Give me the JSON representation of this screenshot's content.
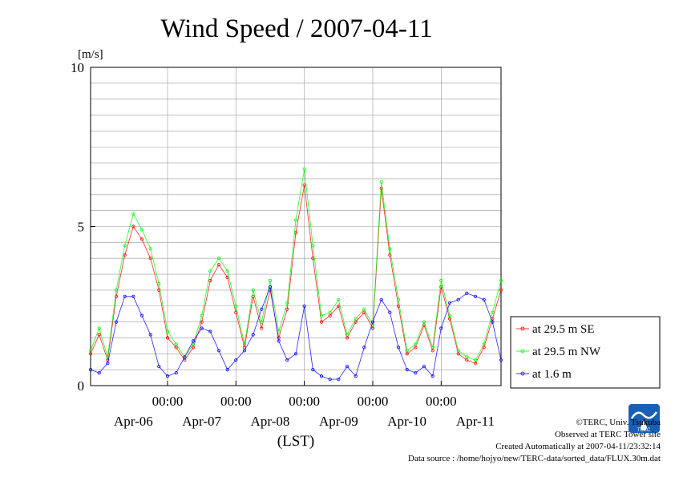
{
  "chart_data": {
    "type": "line",
    "title": "Wind Speed / 2007-04-11",
    "ylabel": "[m/s]",
    "xlabel": "(LST)",
    "ylim": [
      0,
      10
    ],
    "yticks": [
      "0",
      "5",
      "10"
    ],
    "xlim": [
      "2007-04-05T21:00",
      "2007-04-11T21:00"
    ],
    "time_tick_labels": [
      "00:00",
      "00:00",
      "00:00",
      "00:00",
      "00:00"
    ],
    "time_ticks": [
      "2007-04-07T00:00",
      "2007-04-08T00:00",
      "2007-04-09T00:00",
      "2007-04-10T00:00",
      "2007-04-11T00:00"
    ],
    "date_labels": [
      "Apr-06",
      "Apr-07",
      "Apr-08",
      "Apr-09",
      "Apr-10",
      "Apr-11"
    ],
    "date_label_positions": [
      "2007-04-06T12:00",
      "2007-04-07T12:00",
      "2007-04-08T12:00",
      "2007-04-09T12:00",
      "2007-04-10T12:00",
      "2007-04-11T12:00"
    ],
    "grid": true,
    "legend_position": "bottom-right, outside plot",
    "series": [
      {
        "name": "at 29.5 m SE",
        "color": "#ff0000",
        "x": [
          "2007-04-05T21:00",
          "2007-04-06T00:00",
          "2007-04-06T03:00",
          "2007-04-06T06:00",
          "2007-04-06T09:00",
          "2007-04-06T12:00",
          "2007-04-06T15:00",
          "2007-04-06T18:00",
          "2007-04-06T21:00",
          "2007-04-07T00:00",
          "2007-04-07T03:00",
          "2007-04-07T06:00",
          "2007-04-07T09:00",
          "2007-04-07T12:00",
          "2007-04-07T15:00",
          "2007-04-07T18:00",
          "2007-04-07T21:00",
          "2007-04-08T00:00",
          "2007-04-08T03:00",
          "2007-04-08T06:00",
          "2007-04-08T09:00",
          "2007-04-08T12:00",
          "2007-04-08T15:00",
          "2007-04-08T18:00",
          "2007-04-08T21:00",
          "2007-04-09T00:00",
          "2007-04-09T03:00",
          "2007-04-09T06:00",
          "2007-04-09T09:00",
          "2007-04-09T12:00",
          "2007-04-09T15:00",
          "2007-04-09T18:00",
          "2007-04-09T21:00",
          "2007-04-10T00:00",
          "2007-04-10T03:00",
          "2007-04-10T06:00",
          "2007-04-10T09:00",
          "2007-04-10T12:00",
          "2007-04-10T15:00",
          "2007-04-10T18:00",
          "2007-04-10T21:00",
          "2007-04-11T00:00",
          "2007-04-11T03:00",
          "2007-04-11T06:00",
          "2007-04-11T09:00",
          "2007-04-11T12:00",
          "2007-04-11T15:00",
          "2007-04-11T18:00",
          "2007-04-11T21:00"
        ],
        "y": [
          1.0,
          1.6,
          0.8,
          2.8,
          4.1,
          5.0,
          4.6,
          4.0,
          3.0,
          1.5,
          1.2,
          0.8,
          1.2,
          2.0,
          3.3,
          3.8,
          3.4,
          2.3,
          1.2,
          2.8,
          1.8,
          3.0,
          1.5,
          2.4,
          4.8,
          6.3,
          4.0,
          2.0,
          2.2,
          2.5,
          1.5,
          2.0,
          2.3,
          1.8,
          6.2,
          4.1,
          2.5,
          1.0,
          1.2,
          1.9,
          1.1,
          3.1,
          2.1,
          1.0,
          0.8,
          0.7,
          1.2,
          2.1,
          3.0
        ]
      },
      {
        "name": "at 29.5 m NW",
        "color": "#00ff00",
        "x": [
          "2007-04-05T21:00",
          "2007-04-06T00:00",
          "2007-04-06T03:00",
          "2007-04-06T06:00",
          "2007-04-06T09:00",
          "2007-04-06T12:00",
          "2007-04-06T15:00",
          "2007-04-06T18:00",
          "2007-04-06T21:00",
          "2007-04-07T00:00",
          "2007-04-07T03:00",
          "2007-04-07T06:00",
          "2007-04-07T09:00",
          "2007-04-07T12:00",
          "2007-04-07T15:00",
          "2007-04-07T18:00",
          "2007-04-07T21:00",
          "2007-04-08T00:00",
          "2007-04-08T03:00",
          "2007-04-08T06:00",
          "2007-04-08T09:00",
          "2007-04-08T12:00",
          "2007-04-08T15:00",
          "2007-04-08T18:00",
          "2007-04-08T21:00",
          "2007-04-09T00:00",
          "2007-04-09T03:00",
          "2007-04-09T06:00",
          "2007-04-09T09:00",
          "2007-04-09T12:00",
          "2007-04-09T15:00",
          "2007-04-09T18:00",
          "2007-04-09T21:00",
          "2007-04-10T00:00",
          "2007-04-10T03:00",
          "2007-04-10T06:00",
          "2007-04-10T09:00",
          "2007-04-10T12:00",
          "2007-04-10T15:00",
          "2007-04-10T18:00",
          "2007-04-10T21:00",
          "2007-04-11T00:00",
          "2007-04-11T03:00",
          "2007-04-11T06:00",
          "2007-04-11T09:00",
          "2007-04-11T12:00",
          "2007-04-11T15:00",
          "2007-04-11T18:00",
          "2007-04-11T21:00"
        ],
        "y": [
          1.1,
          1.8,
          0.9,
          3.0,
          4.4,
          5.4,
          4.9,
          4.3,
          3.2,
          1.7,
          1.3,
          0.9,
          1.3,
          2.2,
          3.6,
          4.0,
          3.6,
          2.5,
          1.3,
          3.0,
          2.0,
          3.3,
          1.7,
          2.6,
          5.2,
          6.8,
          4.4,
          2.2,
          2.3,
          2.7,
          1.6,
          2.1,
          2.4,
          1.9,
          6.4,
          4.3,
          2.7,
          1.1,
          1.3,
          2.0,
          1.2,
          3.3,
          2.2,
          1.1,
          0.9,
          0.8,
          1.3,
          2.3,
          3.3
        ]
      },
      {
        "name": "at 1.6 m",
        "color": "#0000ff",
        "x": [
          "2007-04-05T21:00",
          "2007-04-06T00:00",
          "2007-04-06T03:00",
          "2007-04-06T06:00",
          "2007-04-06T09:00",
          "2007-04-06T12:00",
          "2007-04-06T15:00",
          "2007-04-06T18:00",
          "2007-04-06T21:00",
          "2007-04-07T00:00",
          "2007-04-07T03:00",
          "2007-04-07T06:00",
          "2007-04-07T09:00",
          "2007-04-07T12:00",
          "2007-04-07T15:00",
          "2007-04-07T18:00",
          "2007-04-07T21:00",
          "2007-04-08T00:00",
          "2007-04-08T03:00",
          "2007-04-08T06:00",
          "2007-04-08T09:00",
          "2007-04-08T12:00",
          "2007-04-08T15:00",
          "2007-04-08T18:00",
          "2007-04-08T21:00",
          "2007-04-09T00:00",
          "2007-04-09T03:00",
          "2007-04-09T06:00",
          "2007-04-09T09:00",
          "2007-04-09T12:00",
          "2007-04-09T15:00",
          "2007-04-09T18:00",
          "2007-04-09T21:00",
          "2007-04-10T00:00",
          "2007-04-10T03:00",
          "2007-04-10T06:00",
          "2007-04-10T09:00",
          "2007-04-10T12:00",
          "2007-04-10T15:00",
          "2007-04-10T18:00",
          "2007-04-10T21:00",
          "2007-04-11T00:00",
          "2007-04-11T03:00",
          "2007-04-11T06:00",
          "2007-04-11T09:00",
          "2007-04-11T12:00",
          "2007-04-11T15:00",
          "2007-04-11T18:00",
          "2007-04-11T21:00"
        ],
        "y": [
          0.5,
          0.4,
          0.7,
          2.0,
          2.8,
          2.8,
          2.2,
          1.6,
          0.6,
          0.3,
          0.4,
          0.9,
          1.4,
          1.8,
          1.7,
          1.1,
          0.5,
          0.8,
          1.1,
          1.6,
          2.4,
          3.1,
          1.4,
          0.8,
          1.0,
          2.5,
          0.5,
          0.3,
          0.2,
          0.2,
          0.6,
          0.3,
          1.2,
          2.0,
          2.7,
          2.3,
          1.2,
          0.5,
          0.4,
          0.6,
          0.3,
          1.8,
          2.6,
          2.7,
          2.9,
          2.8,
          2.7,
          2.0,
          0.8
        ]
      }
    ]
  },
  "footer": {
    "copyright": "©TERC, Univ. Tsukuba",
    "observed": "Observed at TERC Tower site",
    "created": "Created Automatically at 2007-04-11/23:32:14",
    "source": "Data source : /home/hojyo/new/TERC-data/sorted_data/FLUX.30m.dat",
    "logo_text": "TERC"
  }
}
